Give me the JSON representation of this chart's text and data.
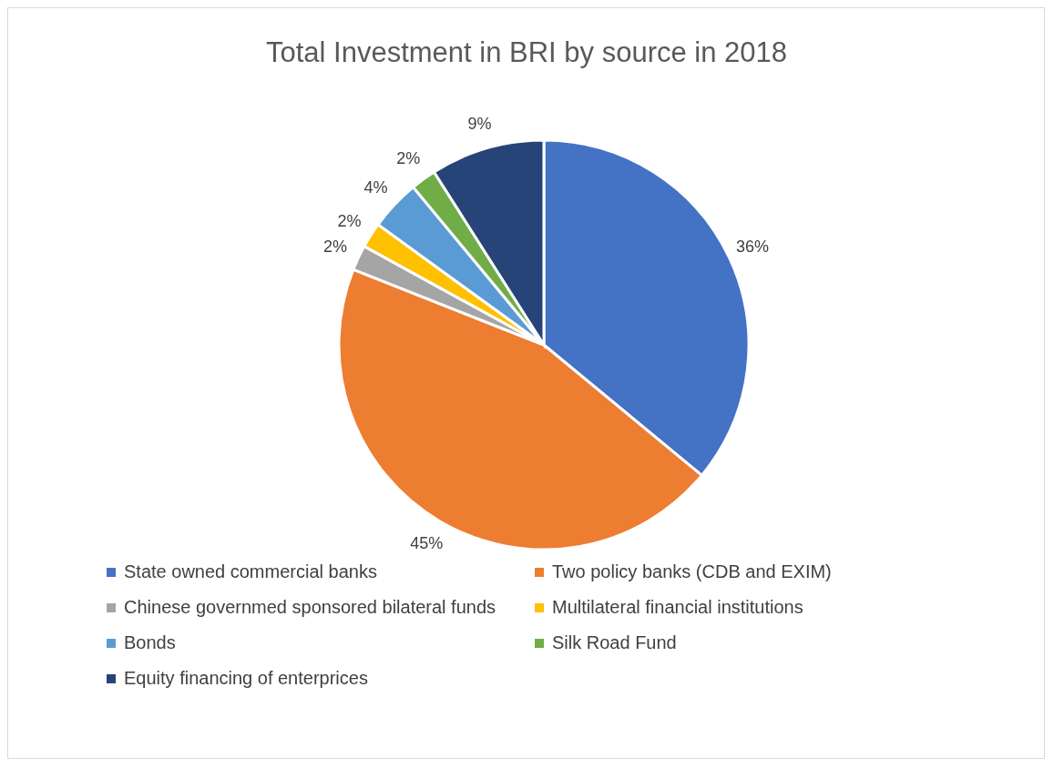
{
  "chart_data": {
    "type": "pie",
    "title": "Total Investment in BRI by source in 2018",
    "categories": [
      "State owned commercial banks",
      "Two policy banks (CDB and EXIM)",
      "Chinese governmed sponsored bilateral funds",
      "Multilateral financial institutions",
      "Bonds",
      "Silk Road Fund",
      "Equity financing of enterprices"
    ],
    "values": [
      36,
      45,
      2,
      2,
      4,
      2,
      9
    ],
    "value_labels": [
      "36%",
      "45%",
      "2%",
      "2%",
      "4%",
      "2%",
      "9%"
    ],
    "colors": [
      "#4472c4",
      "#ed7d31",
      "#a5a5a5",
      "#ffc000",
      "#5b9bd5",
      "#70ad47",
      "#264478"
    ],
    "legend": "bottom"
  }
}
